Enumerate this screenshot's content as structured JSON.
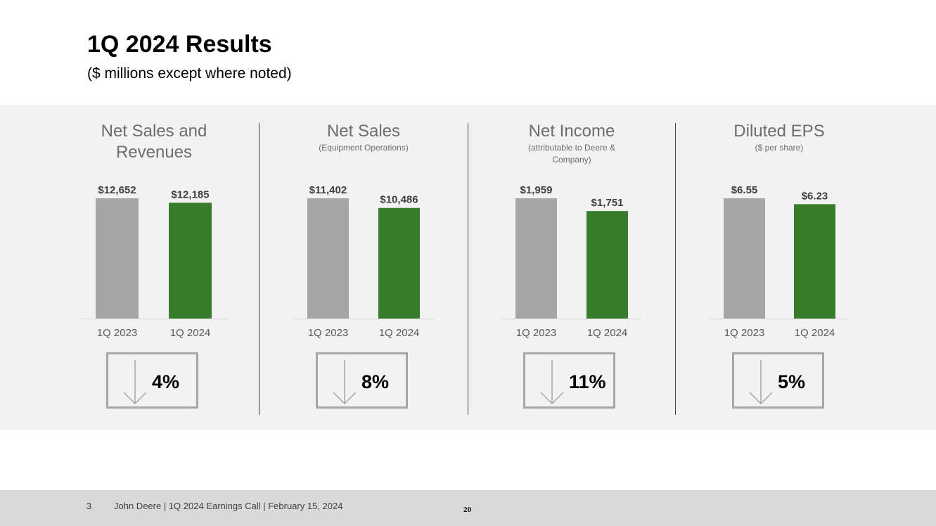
{
  "slide": {
    "title": "1Q 2024 Results",
    "subtitle": "($ millions except where noted)"
  },
  "colors": {
    "prior": "#a6a6a6",
    "current": "#367c2b",
    "band": "#f2f2f2"
  },
  "panels": [
    {
      "title": "Net Sales and Revenues",
      "subtitle": "",
      "change_pct": "4%",
      "change_icon": "arrow-down-icon"
    },
    {
      "title": "Net Sales",
      "subtitle": "(Equipment Operations)",
      "change_pct": "8%",
      "change_icon": "arrow-down-icon"
    },
    {
      "title": "Net Income",
      "subtitle": "(attributable to Deere & Company)",
      "change_pct": "11%",
      "change_icon": "arrow-down-icon"
    },
    {
      "title": "Diluted EPS",
      "subtitle": "($ per share)",
      "change_pct": "5%",
      "change_icon": "arrow-down-icon"
    }
  ],
  "chart_data": [
    {
      "type": "bar",
      "title": "Net Sales and Revenues",
      "categories": [
        "1Q 2023",
        "1Q 2024"
      ],
      "values": [
        12652,
        12185
      ],
      "data_labels": [
        "$12,652",
        "$12,185"
      ]
    },
    {
      "type": "bar",
      "title": "Net Sales",
      "categories": [
        "1Q 2023",
        "1Q 2024"
      ],
      "values": [
        11402,
        10486
      ],
      "data_labels": [
        "$11,402",
        "$10,486"
      ]
    },
    {
      "type": "bar",
      "title": "Net Income",
      "categories": [
        "1Q 2023",
        "1Q 2024"
      ],
      "values": [
        1959,
        1751
      ],
      "data_labels": [
        "$1,959",
        "$1,751"
      ]
    },
    {
      "type": "bar",
      "title": "Diluted EPS",
      "categories": [
        "1Q 2023",
        "1Q 2024"
      ],
      "values": [
        6.55,
        6.23
      ],
      "data_labels": [
        "$6.55",
        "$6.23"
      ]
    }
  ],
  "footer": {
    "slide_number": "3",
    "text": "John Deere | 1Q 2024 Earnings Call | February 15, 2024",
    "page_number": "20"
  }
}
